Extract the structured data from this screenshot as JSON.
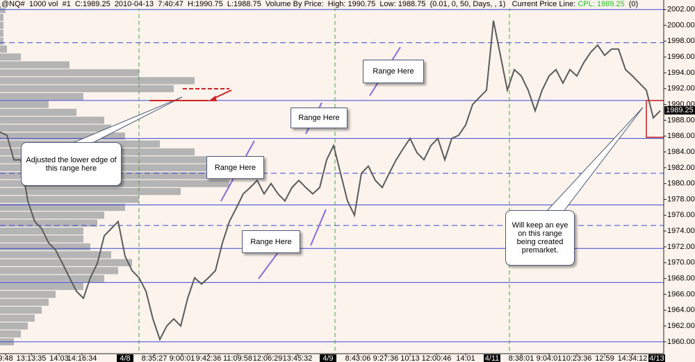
{
  "header": {
    "text": "@NQ#  1000 vol  #1  C:1989.25  2010-04-13  7:40:47  H:1990.75  L:1988.75  Volume By Price:  High: 1990.75  Low: 1988.75  (0.01, 0, 50, Days, , 1)   Current Price Line:",
    "cpl": "CPL: 1989.25",
    "tail": "(0)"
  },
  "chart_data": {
    "type": "line",
    "ylim": [
      1958.5,
      2003.2
    ],
    "xlim": [
      0,
      955
    ],
    "yticks": [
      {
        "value": 1960,
        "label": "1960.00"
      },
      {
        "value": 1962,
        "label": "1962.00"
      },
      {
        "value": 1964,
        "label": "1964.00"
      },
      {
        "value": 1966,
        "label": "1966.00"
      },
      {
        "value": 1968,
        "label": "1968.00"
      },
      {
        "value": 1970,
        "label": "1970.00"
      },
      {
        "value": 1972,
        "label": "1972.00"
      },
      {
        "value": 1974,
        "label": "1974.00"
      },
      {
        "value": 1976,
        "label": "1976.00"
      },
      {
        "value": 1978,
        "label": "1978.00"
      },
      {
        "value": 1980,
        "label": "1980.00"
      },
      {
        "value": 1982,
        "label": "1982.00"
      },
      {
        "value": 1984,
        "label": "1984.00"
      },
      {
        "value": 1986,
        "label": "1986.00"
      },
      {
        "value": 1988,
        "label": "1988.00"
      },
      {
        "value": 1990,
        "label": "1990.00"
      },
      {
        "value": 1992,
        "label": "1992.00"
      },
      {
        "value": 1994,
        "label": "1994.00"
      },
      {
        "value": 1996,
        "label": "1996.00"
      },
      {
        "value": 1998,
        "label": "1998.00"
      },
      {
        "value": 2000,
        "label": "2000.00"
      },
      {
        "value": 2002,
        "label": "2002.00"
      }
    ],
    "xticks": [
      {
        "value": 8,
        "label": "9:48"
      },
      {
        "value": 45,
        "label": "13:13:35"
      },
      {
        "value": 85,
        "label": "14:03"
      },
      {
        "value": 118,
        "label": "14:16:34"
      },
      {
        "value": 180,
        "label": "4/8"
      },
      {
        "value": 222,
        "label": "8:35:27"
      },
      {
        "value": 262,
        "label": "9:00:01"
      },
      {
        "value": 300,
        "label": "9:42:36"
      },
      {
        "value": 342,
        "label": "11:09:58"
      },
      {
        "value": 385,
        "label": "12:06:29"
      },
      {
        "value": 428,
        "label": "13:45:32"
      },
      {
        "value": 472,
        "label": "4/9"
      },
      {
        "value": 515,
        "label": "8:43:06"
      },
      {
        "value": 555,
        "label": "9:27:36"
      },
      {
        "value": 590,
        "label": "10:13"
      },
      {
        "value": 628,
        "label": "12:00:46"
      },
      {
        "value": 670,
        "label": "14:01"
      },
      {
        "value": 708,
        "label": "4/11"
      },
      {
        "value": 750,
        "label": "8:38:01"
      },
      {
        "value": 790,
        "label": "9:04:01"
      },
      {
        "value": 830,
        "label": "10:23:36"
      },
      {
        "value": 870,
        "label": "12:59"
      },
      {
        "value": 910,
        "label": "14:34:12"
      },
      {
        "value": 945,
        "label": "4/13"
      }
    ],
    "series": [
      {
        "color": "#5a5a5a",
        "x": [
          0,
          10,
          20,
          30,
          40,
          50,
          60,
          70,
          80,
          90,
          100,
          110,
          120,
          130,
          140,
          150,
          160,
          170,
          180,
          190,
          200,
          210,
          220,
          230,
          240,
          250,
          260,
          270,
          280,
          290,
          300,
          310,
          320,
          330,
          340,
          350,
          360,
          370,
          380,
          390,
          400,
          410,
          420,
          430,
          440,
          450,
          460,
          470,
          480,
          490,
          500,
          510,
          520,
          530,
          540,
          550,
          560,
          570,
          580,
          590,
          600,
          610,
          620,
          630,
          640,
          650,
          660,
          670,
          680,
          690,
          700,
          710,
          720,
          730,
          740,
          750,
          760,
          770,
          780,
          790,
          800,
          810,
          820,
          830,
          840,
          850,
          860,
          870,
          880,
          890,
          900,
          910,
          920,
          930,
          940,
          950
        ],
        "values": [
          1986.5,
          1986.1,
          1983,
          1983,
          1977.8,
          1975.2,
          1974.3,
          1972.5,
          1971.6,
          1969.9,
          1968.1,
          1966.4,
          1965.5,
          1968.1,
          1969.9,
          1973.4,
          1974.3,
          1975.2,
          1970.8,
          1969,
          1968.1,
          1966.4,
          1962.9,
          1960.3,
          1962,
          1962.9,
          1962,
          1965.5,
          1968.1,
          1967.3,
          1968.1,
          1969,
          1972.5,
          1975.2,
          1976.9,
          1978.7,
          1979.5,
          1980.4,
          1978.7,
          1980,
          1978.7,
          1977.8,
          1979.5,
          1980.4,
          1979.5,
          1978.7,
          1979.5,
          1983,
          1984.8,
          1981.3,
          1977.8,
          1976,
          1981.3,
          1982.2,
          1980.4,
          1979.5,
          1981.3,
          1983,
          1984.4,
          1985.7,
          1983.9,
          1983,
          1984.8,
          1985.7,
          1983,
          1985.7,
          1986.1,
          1987.4,
          1990,
          1990.9,
          1991.8,
          2000.6,
          1996.2,
          1991.8,
          1994.4,
          1993.6,
          1991.8,
          1989.2,
          1991.8,
          1993.6,
          1994.4,
          1992.7,
          1994.4,
          1993.6,
          1995.3,
          1996.6,
          1997.5,
          1996.2,
          1997,
          1997,
          1994.4,
          1993.6,
          1992.7,
          1991.8,
          1988.3,
          1989.2
        ]
      }
    ],
    "volume_profile": {
      "color": "#b4b4b4",
      "prices": [
        1960,
        1961,
        1962,
        1963,
        1964,
        1965,
        1966,
        1967,
        1968,
        1969,
        1970,
        1971,
        1972,
        1973,
        1974,
        1975,
        1976,
        1977,
        1978,
        1979,
        1980,
        1981,
        1982,
        1983,
        1984,
        1985,
        1986,
        1987,
        1988,
        1989,
        1990,
        1991,
        1992,
        1993,
        1994,
        1995,
        1996,
        1997,
        1998,
        1999,
        2000,
        2001,
        2002
      ],
      "values": [
        20,
        30,
        40,
        50,
        60,
        70,
        80,
        120,
        150,
        170,
        190,
        160,
        130,
        120,
        120,
        140,
        150,
        180,
        200,
        260,
        330,
        330,
        320,
        300,
        280,
        230,
        180,
        160,
        150,
        110,
        70,
        120,
        250,
        280,
        200,
        100,
        30,
        10,
        5,
        5,
        5,
        5,
        8
      ]
    },
    "levels": [
      {
        "price": 2002,
        "style": "solid"
      },
      {
        "price": 1997.8,
        "style": "dashed"
      },
      {
        "price": 1990.5,
        "style": "solid"
      },
      {
        "price": 1985.7,
        "style": "solid"
      },
      {
        "price": 1981.3,
        "style": "dashed"
      },
      {
        "price": 1977.3,
        "style": "solid"
      },
      {
        "price": 1974.7,
        "style": "dashed"
      },
      {
        "price": 1971.8,
        "style": "solid"
      },
      {
        "price": 1967.5,
        "style": "solid"
      },
      {
        "price": 1960,
        "style": "solid"
      }
    ],
    "sessions": [
      200,
      482,
      733
    ],
    "current_price": 1989.25,
    "annotations": [
      "Adjusted the lower edge of this range here",
      "Range Here",
      "Range Here",
      "Range Here",
      "Range Here",
      "Will keep an eye on this range being created premarket."
    ]
  }
}
